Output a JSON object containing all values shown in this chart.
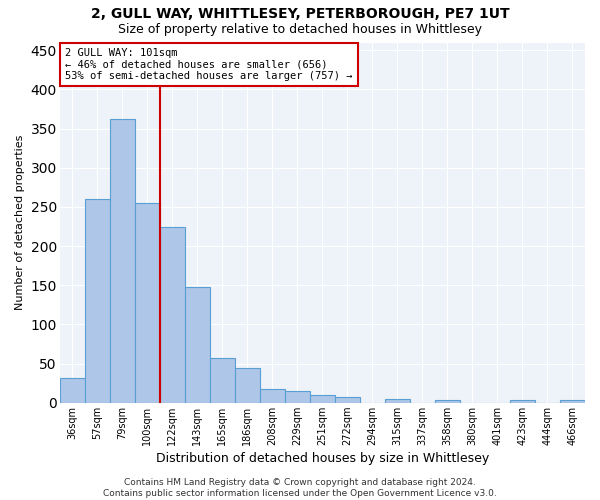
{
  "title_line1": "2, GULL WAY, WHITTLESEY, PETERBOROUGH, PE7 1UT",
  "title_line2": "Size of property relative to detached houses in Whittlesey",
  "xlabel": "Distribution of detached houses by size in Whittlesey",
  "ylabel": "Number of detached properties",
  "categories": [
    "36sqm",
    "57sqm",
    "79sqm",
    "100sqm",
    "122sqm",
    "143sqm",
    "165sqm",
    "186sqm",
    "208sqm",
    "229sqm",
    "251sqm",
    "272sqm",
    "294sqm",
    "315sqm",
    "337sqm",
    "358sqm",
    "380sqm",
    "401sqm",
    "423sqm",
    "444sqm",
    "466sqm"
  ],
  "values": [
    32,
    260,
    362,
    255,
    224,
    148,
    57,
    45,
    18,
    15,
    10,
    7,
    0,
    5,
    0,
    3,
    0,
    0,
    4,
    0,
    4
  ],
  "bar_color": "#aec6e8",
  "bar_edge_color": "#5a9fd4",
  "highlight_line_index": 3,
  "highlight_line_color": "#cc0000",
  "annotation_text": "2 GULL WAY: 101sqm\n← 46% of detached houses are smaller (656)\n53% of semi-detached houses are larger (757) →",
  "annotation_box_color": "#ffffff",
  "annotation_box_edge": "#cc0000",
  "ylim": [
    0,
    460
  ],
  "yticks": [
    0,
    50,
    100,
    150,
    200,
    250,
    300,
    350,
    400,
    450
  ],
  "footer_line1": "Contains HM Land Registry data © Crown copyright and database right 2024.",
  "footer_line2": "Contains public sector information licensed under the Open Government Licence v3.0.",
  "bg_color": "#eef2f9",
  "fig_bg_color": "#ffffff",
  "title1_fontsize": 10,
  "title2_fontsize": 9,
  "ylabel_fontsize": 8,
  "xlabel_fontsize": 9,
  "tick_fontsize": 7,
  "ann_fontsize": 7.5,
  "footer_fontsize": 6.5
}
